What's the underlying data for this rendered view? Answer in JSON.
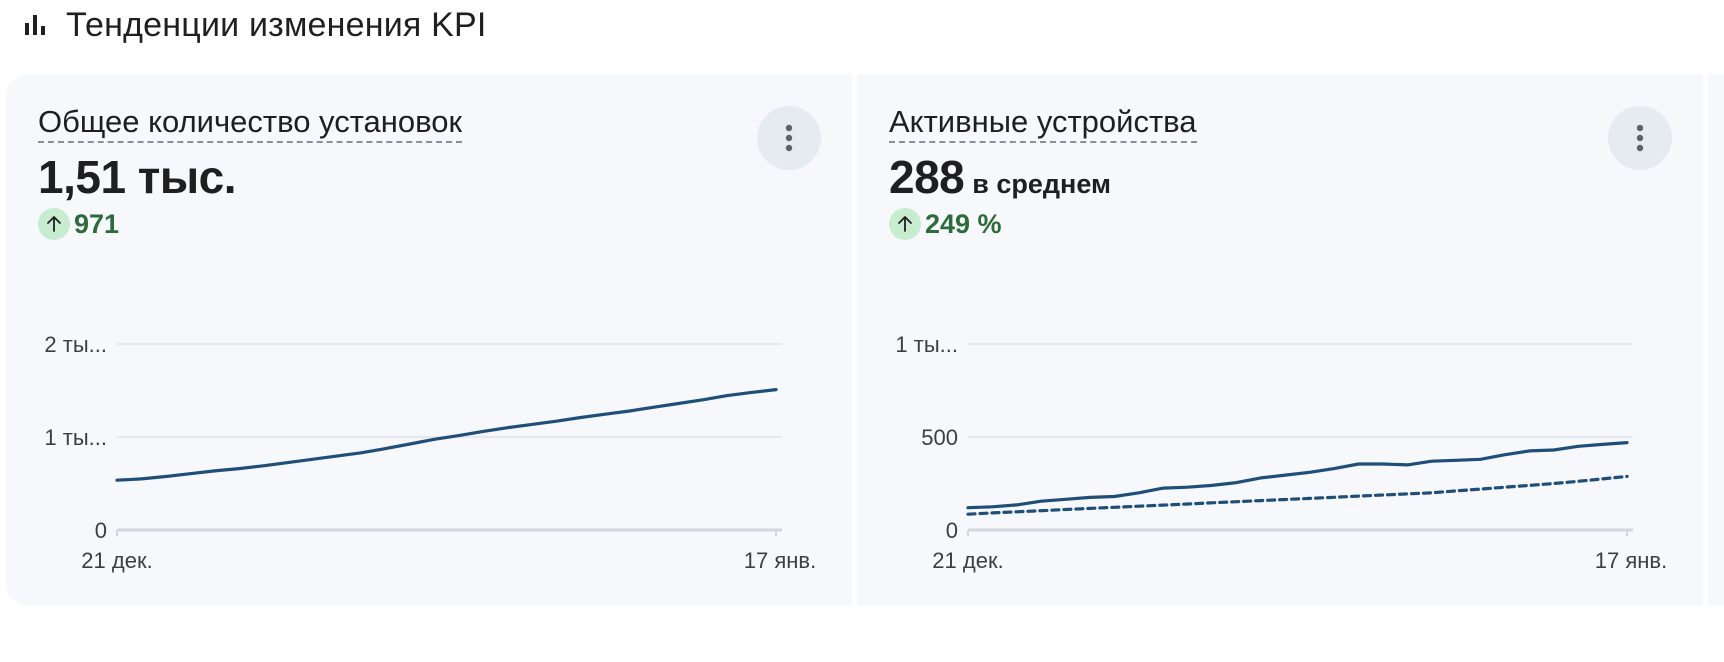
{
  "section": {
    "title": "Тенденции изменения KPI",
    "icon": "bar-chart-icon"
  },
  "cards": [
    {
      "title": "Общее количество установок",
      "value": "1,51 тыс.",
      "suffix": "",
      "delta": "971",
      "delta_direction": "up",
      "more_icon": "more-vert-icon"
    },
    {
      "title": "Активные устройства",
      "value": "288",
      "suffix": "в среднем",
      "delta": "249 %",
      "delta_direction": "up",
      "more_icon": "more-vert-icon"
    }
  ],
  "colors": {
    "line": "#1f4e79",
    "grid": "#e0e3e8",
    "axis": "#d3d7dd",
    "delta_bg": "#c7ecd0",
    "delta_text": "#2e6b3a",
    "card_bg": "#f6f8fc"
  },
  "chart_data": [
    {
      "type": "line",
      "x_start_label": "21 дек.",
      "x_end_label": "17 янв.",
      "yticks": [
        {
          "value": 0,
          "label": "0"
        },
        {
          "value": 1000,
          "label": "1 ты..."
        },
        {
          "value": 2000,
          "label": "2 ты..."
        }
      ],
      "ylim": [
        0,
        2000
      ],
      "grid": true,
      "series": [
        {
          "style": "solid",
          "values": [
            535,
            550,
            575,
            605,
            635,
            660,
            690,
            725,
            760,
            795,
            830,
            875,
            925,
            975,
            1015,
            1060,
            1100,
            1135,
            1170,
            1210,
            1245,
            1280,
            1320,
            1360,
            1400,
            1445,
            1480,
            1510
          ]
        }
      ]
    },
    {
      "type": "line",
      "x_start_label": "21 дек.",
      "x_end_label": "17 янв.",
      "yticks": [
        {
          "value": 0,
          "label": "0"
        },
        {
          "value": 500,
          "label": "500"
        },
        {
          "value": 1000,
          "label": "1 ты..."
        }
      ],
      "ylim": [
        0,
        1000
      ],
      "grid": true,
      "series": [
        {
          "style": "solid",
          "values": [
            120,
            125,
            135,
            155,
            165,
            175,
            180,
            200,
            225,
            230,
            240,
            255,
            280,
            295,
            310,
            330,
            355,
            355,
            350,
            370,
            375,
            380,
            405,
            425,
            430,
            450,
            460,
            470
          ]
        },
        {
          "style": "dashed",
          "values": [
            85,
            92,
            98,
            104,
            110,
            116,
            122,
            128,
            134,
            140,
            146,
            152,
            158,
            164,
            170,
            176,
            182,
            188,
            194,
            200,
            210,
            220,
            230,
            240,
            250,
            262,
            275,
            288
          ]
        }
      ]
    }
  ]
}
